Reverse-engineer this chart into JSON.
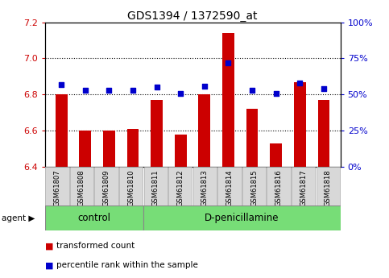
{
  "title": "GDS1394 / 1372590_at",
  "samples": [
    "GSM61807",
    "GSM61808",
    "GSM61809",
    "GSM61810",
    "GSM61811",
    "GSM61812",
    "GSM61813",
    "GSM61814",
    "GSM61815",
    "GSM61816",
    "GSM61817",
    "GSM61818"
  ],
  "red_values": [
    6.8,
    6.6,
    6.6,
    6.61,
    6.77,
    6.58,
    6.8,
    7.14,
    6.72,
    6.53,
    6.87,
    6.77
  ],
  "blue_pct": [
    57,
    53,
    53,
    53,
    55,
    51,
    56,
    72,
    53,
    51,
    58,
    54
  ],
  "ylim_left": [
    6.4,
    7.2
  ],
  "ylim_right": [
    0,
    100
  ],
  "yticks_left": [
    6.4,
    6.6,
    6.8,
    7.0,
    7.2
  ],
  "yticks_right": [
    0,
    25,
    50,
    75,
    100
  ],
  "ytick_labels_right": [
    "0%",
    "25%",
    "50%",
    "75%",
    "100%"
  ],
  "grid_lines": [
    6.6,
    6.8,
    7.0
  ],
  "control_samples": 4,
  "group_labels": [
    "control",
    "D-penicillamine"
  ],
  "agent_label": "agent",
  "legend_red": "transformed count",
  "legend_blue": "percentile rank within the sample",
  "bar_color": "#cc0000",
  "dot_color": "#0000cc",
  "group_bg": "#77dd77",
  "sample_bg": "#d8d8d8",
  "tick_color_left": "#cc0000",
  "tick_color_right": "#0000cc",
  "title_fontsize": 10,
  "bar_width": 0.5
}
